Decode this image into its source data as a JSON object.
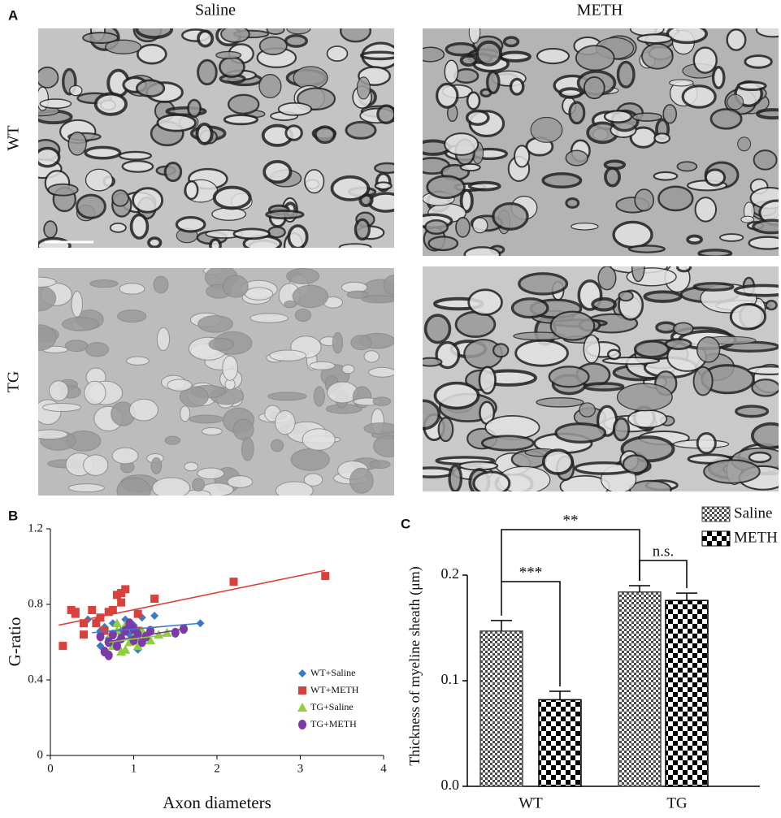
{
  "figure": {
    "panel_labels": [
      "A",
      "B",
      "C"
    ],
    "columns": [
      "Saline",
      "METH"
    ],
    "rows": [
      "WT",
      "TG"
    ]
  },
  "chart_data": [
    {
      "type": "scatter",
      "xlabel": "Axon diameters",
      "ylabel": "G-ratio",
      "xlim": [
        0,
        4
      ],
      "ylim": [
        0,
        1.2
      ],
      "xticks": [
        0,
        1,
        2,
        3,
        4
      ],
      "yticks": [
        0,
        0.4,
        0.8,
        1.2
      ],
      "legend": "right",
      "series": [
        {
          "name": "WT+Saline",
          "color": "#3a7bc8",
          "marker": "diamond",
          "x": [
            0.45,
            0.55,
            0.6,
            0.65,
            0.7,
            0.75,
            0.85,
            0.9,
            0.95,
            1.0,
            1.05,
            1.1,
            1.2,
            1.25,
            1.8,
            0.6,
            0.8
          ],
          "y": [
            0.72,
            0.71,
            0.66,
            0.68,
            0.62,
            0.7,
            0.66,
            0.72,
            0.64,
            0.69,
            0.56,
            0.73,
            0.66,
            0.74,
            0.7,
            0.58,
            0.6
          ],
          "trendline": {
            "x": [
              0.5,
              1.8
            ],
            "y": [
              0.65,
              0.7
            ]
          }
        },
        {
          "name": "WT+METH",
          "color": "#d9423c",
          "marker": "square",
          "x": [
            0.15,
            0.25,
            0.3,
            0.3,
            0.4,
            0.4,
            0.5,
            0.55,
            0.6,
            0.65,
            0.7,
            0.75,
            0.8,
            0.85,
            0.85,
            0.9,
            1.05,
            1.05,
            1.25,
            2.2,
            3.3
          ],
          "y": [
            0.58,
            0.77,
            0.76,
            0.75,
            0.64,
            0.7,
            0.77,
            0.7,
            0.73,
            0.66,
            0.76,
            0.77,
            0.85,
            0.81,
            0.86,
            0.88,
            0.75,
            0.66,
            0.83,
            0.92,
            0.95
          ],
          "trendline": {
            "x": [
              0.1,
              3.3
            ],
            "y": [
              0.69,
              0.98
            ]
          }
        },
        {
          "name": "TG+Saline",
          "color": "#8fcf3c",
          "marker": "triangle",
          "x": [
            0.7,
            0.75,
            0.8,
            0.85,
            0.9,
            0.95,
            1.0,
            1.05,
            1.1,
            1.2,
            1.3,
            1.4,
            0.8,
            0.9
          ],
          "y": [
            0.62,
            0.58,
            0.66,
            0.55,
            0.69,
            0.6,
            0.63,
            0.58,
            0.66,
            0.61,
            0.64,
            0.65,
            0.7,
            0.56
          ],
          "trendline": {
            "x": [
              0.7,
              1.4
            ],
            "y": [
              0.6,
              0.64
            ]
          }
        },
        {
          "name": "TG+METH",
          "color": "#7b3aa6",
          "marker": "circle",
          "x": [
            0.6,
            0.65,
            0.7,
            0.75,
            0.8,
            0.85,
            0.9,
            0.95,
            1.0,
            1.0,
            1.05,
            1.1,
            1.15,
            1.2,
            1.5,
            1.6,
            0.7,
            0.95
          ],
          "y": [
            0.63,
            0.55,
            0.6,
            0.64,
            0.58,
            0.62,
            0.66,
            0.69,
            0.61,
            0.67,
            0.64,
            0.6,
            0.63,
            0.66,
            0.65,
            0.67,
            0.53,
            0.7
          ],
          "trendline": {
            "x": [
              0.65,
              1.6
            ],
            "y": [
              0.6,
              0.67
            ]
          }
        }
      ]
    },
    {
      "type": "bar",
      "ylabel": "Thickness of myeline sheath (μm)",
      "categories": [
        "WT",
        "TG"
      ],
      "ylim": [
        0,
        0.2
      ],
      "yticks": [
        {
          "value": 0,
          "label": "0.0"
        },
        0.1,
        0.2
      ],
      "legend": "top-right",
      "series": [
        {
          "name": "Saline",
          "color": "#4a4a4a",
          "pattern": "fine-checker",
          "values": [
            0.147,
            0.184
          ],
          "errors": [
            0.01,
            0.006
          ]
        },
        {
          "name": "METH",
          "color": "#000000",
          "pattern": "coarse-checker",
          "values": [
            0.082,
            0.176
          ],
          "errors": [
            0.008,
            0.007
          ]
        }
      ],
      "annotations": [
        "***",
        "**",
        "n.s."
      ]
    }
  ]
}
